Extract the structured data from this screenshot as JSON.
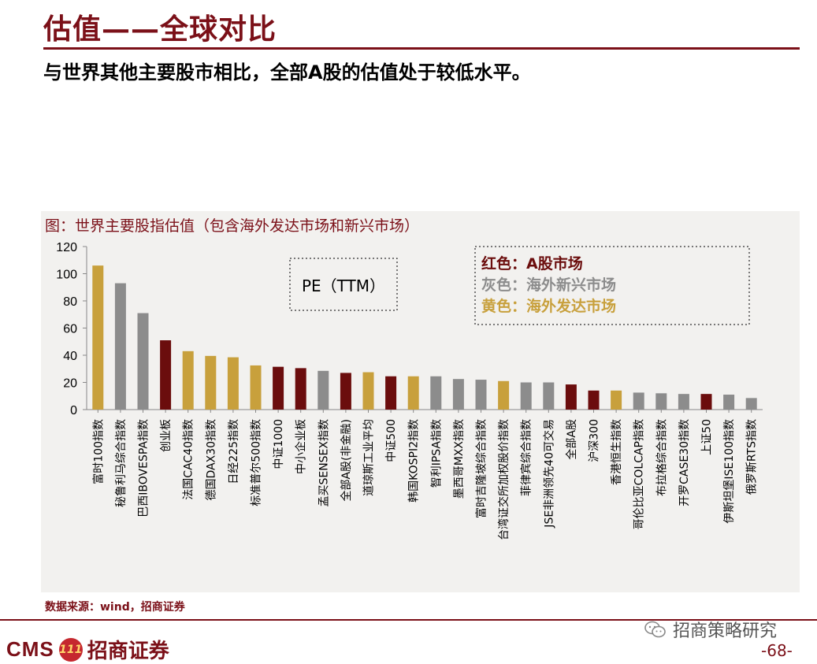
{
  "slide": {
    "title": "估值——全球对比",
    "subtitle": "与世界其他主要股市相比，全部A股的估值处于较低水平。",
    "source": "数据来源：wind，招商证券",
    "brand_cms": "CMS",
    "brand_badge": "111",
    "brand_name": "招商证券",
    "wechat_label": "招商策略研究",
    "page_number": "-68-"
  },
  "colors": {
    "red": "#6b0d0d",
    "gray": "#8c8c8c",
    "yellow": "#c8a03c",
    "accent": "#7b1018"
  },
  "chart_data": {
    "type": "bar",
    "title": "图：世界主要股指估值（包含海外发达市场和新兴市场）",
    "metric_label": "PE（TTM）",
    "ylim": [
      0,
      120
    ],
    "yticks": [
      0,
      20,
      40,
      60,
      80,
      100,
      120
    ],
    "legend": [
      {
        "prefix": "红色：",
        "label": "A股市场",
        "group": "red"
      },
      {
        "prefix": "灰色：",
        "label": "海外新兴市场",
        "group": "gray"
      },
      {
        "prefix": "黄色：",
        "label": "海外发达市场",
        "group": "yellow"
      }
    ],
    "categories": [
      "富时100指数",
      "秘鲁利马综合指数",
      "巴西IBOVESPA指数",
      "创业板",
      "法国CAC40指数",
      "德国DAX30指数",
      "日经225指数",
      "标准普尔500指数",
      "中证1000",
      "中小企业板",
      "孟买SENSEX指数",
      "全部A股(非金融)",
      "道琼斯工业平均",
      "中证500",
      "韩国KOSPI2指数",
      "智利IPSA指数",
      "墨西哥MXX指数",
      "富时吉隆坡综合指数",
      "台湾证交所加权股价指数",
      "菲律宾综合指数",
      "JSE非洲领先40可交易",
      "全部A股",
      "沪深300",
      "香港恒生指数",
      "哥伦比亚COLCAP指数",
      "布拉格综合指数",
      "开罗CASE30指数",
      "上证50",
      "伊斯坦堡ISE100指数",
      "俄罗斯RTS指数"
    ],
    "values": [
      106,
      93,
      71,
      51,
      43,
      39.5,
      38.5,
      32.5,
      31.5,
      30.5,
      28.5,
      27,
      27.5,
      24.5,
      24.5,
      24.5,
      22.5,
      22,
      21,
      20,
      20,
      18.5,
      14,
      14,
      12.5,
      12,
      11.5,
      11.5,
      11,
      8.5
    ],
    "groups": [
      "yellow",
      "gray",
      "gray",
      "red",
      "yellow",
      "yellow",
      "yellow",
      "yellow",
      "red",
      "red",
      "gray",
      "red",
      "yellow",
      "red",
      "yellow",
      "gray",
      "gray",
      "gray",
      "yellow",
      "gray",
      "gray",
      "red",
      "red",
      "yellow",
      "gray",
      "gray",
      "gray",
      "red",
      "gray",
      "gray"
    ]
  }
}
